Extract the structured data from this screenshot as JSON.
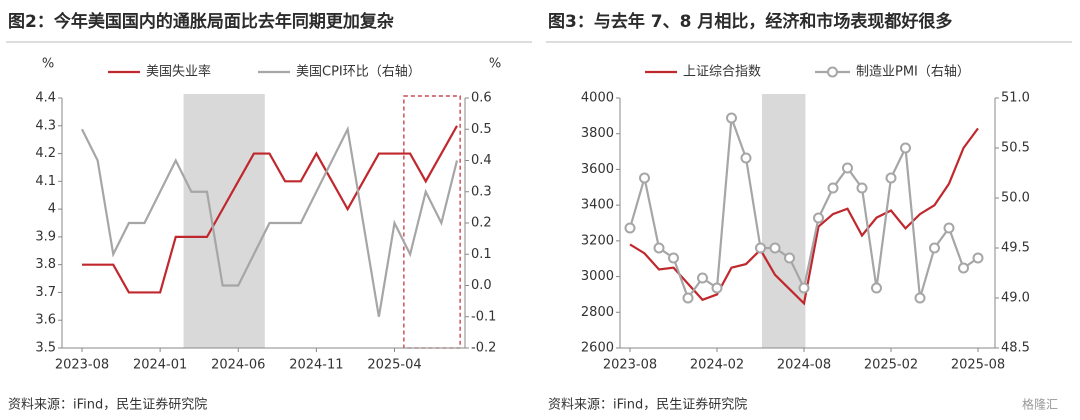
{
  "chart_data": [
    {
      "type": "line",
      "title": "图2：今年美国国内的通胀局面比去年同期更加复杂",
      "ylabel": "%",
      "y2label": "%",
      "categories": [
        "2023-08",
        null,
        null,
        null,
        null,
        "2024-01",
        null,
        null,
        null,
        null,
        "2024-06",
        null,
        null,
        null,
        null,
        "2024-11",
        null,
        null,
        null,
        null,
        "2025-04",
        null,
        null,
        null,
        null
      ],
      "series": [
        {
          "name": "美国失业率",
          "color": "#c0282d",
          "values": [
            3.8,
            3.8,
            3.8,
            3.7,
            3.7,
            3.7,
            3.9,
            3.9,
            3.9,
            4.0,
            4.1,
            4.2,
            4.2,
            4.1,
            4.1,
            4.2,
            4.1,
            4.0,
            4.1,
            4.2,
            4.2,
            4.2,
            4.1,
            4.2,
            4.3
          ]
        },
        {
          "name": "美国CPI环比（右轴）",
          "color": "#a6a6a6",
          "axis": "y2",
          "values": [
            0.5,
            0.4,
            0.1,
            0.2,
            0.2,
            0.3,
            0.4,
            0.3,
            0.3,
            0.0,
            0.0,
            0.1,
            0.2,
            0.2,
            0.2,
            0.3,
            0.4,
            0.5,
            0.2,
            -0.1,
            0.2,
            0.1,
            0.3,
            0.2,
            0.4
          ]
        }
      ],
      "ylim": [
        3.5,
        4.4
      ],
      "yticks": [
        3.5,
        3.6,
        3.7,
        3.8,
        3.9,
        4,
        4.1,
        4.2,
        4.3,
        4.4
      ],
      "y2lim": [
        -0.2,
        0.6
      ],
      "y2ticks": [
        -0.2,
        -0.1,
        {
          "value": 0,
          "label": "0.0"
        },
        0.1,
        0.2,
        0.3,
        0.4,
        0.5,
        0.6
      ],
      "source": "资料来源：iFind，民生证券研究院"
    },
    {
      "type": "line",
      "title": "图3：与去年 7、8 月相比，经济和市场表现都好很多",
      "categories": [
        "2023-08",
        null,
        null,
        null,
        null,
        null,
        "2024-02",
        null,
        null,
        null,
        null,
        null,
        "2024-08",
        null,
        null,
        null,
        null,
        null,
        "2025-02",
        null,
        null,
        null,
        null,
        null,
        "2025-08"
      ],
      "series": [
        {
          "name": "上证综合指数",
          "color": "#c0282d",
          "values": [
            3180,
            3130,
            3040,
            3050,
            2960,
            2870,
            2900,
            3050,
            3070,
            3150,
            3010,
            2930,
            2850,
            3280,
            3350,
            3380,
            3230,
            3330,
            3370,
            3270,
            3350,
            3400,
            3520,
            3720,
            3830
          ]
        },
        {
          "name": "制造业PMI（右轴）",
          "color": "#a6a6a6",
          "axis": "y2",
          "marker": "circle",
          "values": [
            49.7,
            50.2,
            49.5,
            49.4,
            49.0,
            49.2,
            49.1,
            50.8,
            50.4,
            49.5,
            49.5,
            49.4,
            49.1,
            49.8,
            50.1,
            50.3,
            50.1,
            49.1,
            50.2,
            50.5,
            49.0,
            49.5,
            49.7,
            49.3,
            49.4
          ]
        }
      ],
      "ylim": [
        2600,
        4000
      ],
      "yticks": [
        2600,
        2800,
        3000,
        3200,
        3400,
        3600,
        3800,
        4000
      ],
      "y2lim": [
        48.5,
        51.0
      ],
      "y2ticks": [
        48.5,
        {
          "value": 49,
          "label": "49.0"
        },
        49.5,
        {
          "value": 50,
          "label": "50.0"
        },
        50.5,
        {
          "value": 51,
          "label": "51.0"
        }
      ],
      "source": "资料来源：iFind，民生证券研究院"
    }
  ],
  "watermark": "格隆汇"
}
